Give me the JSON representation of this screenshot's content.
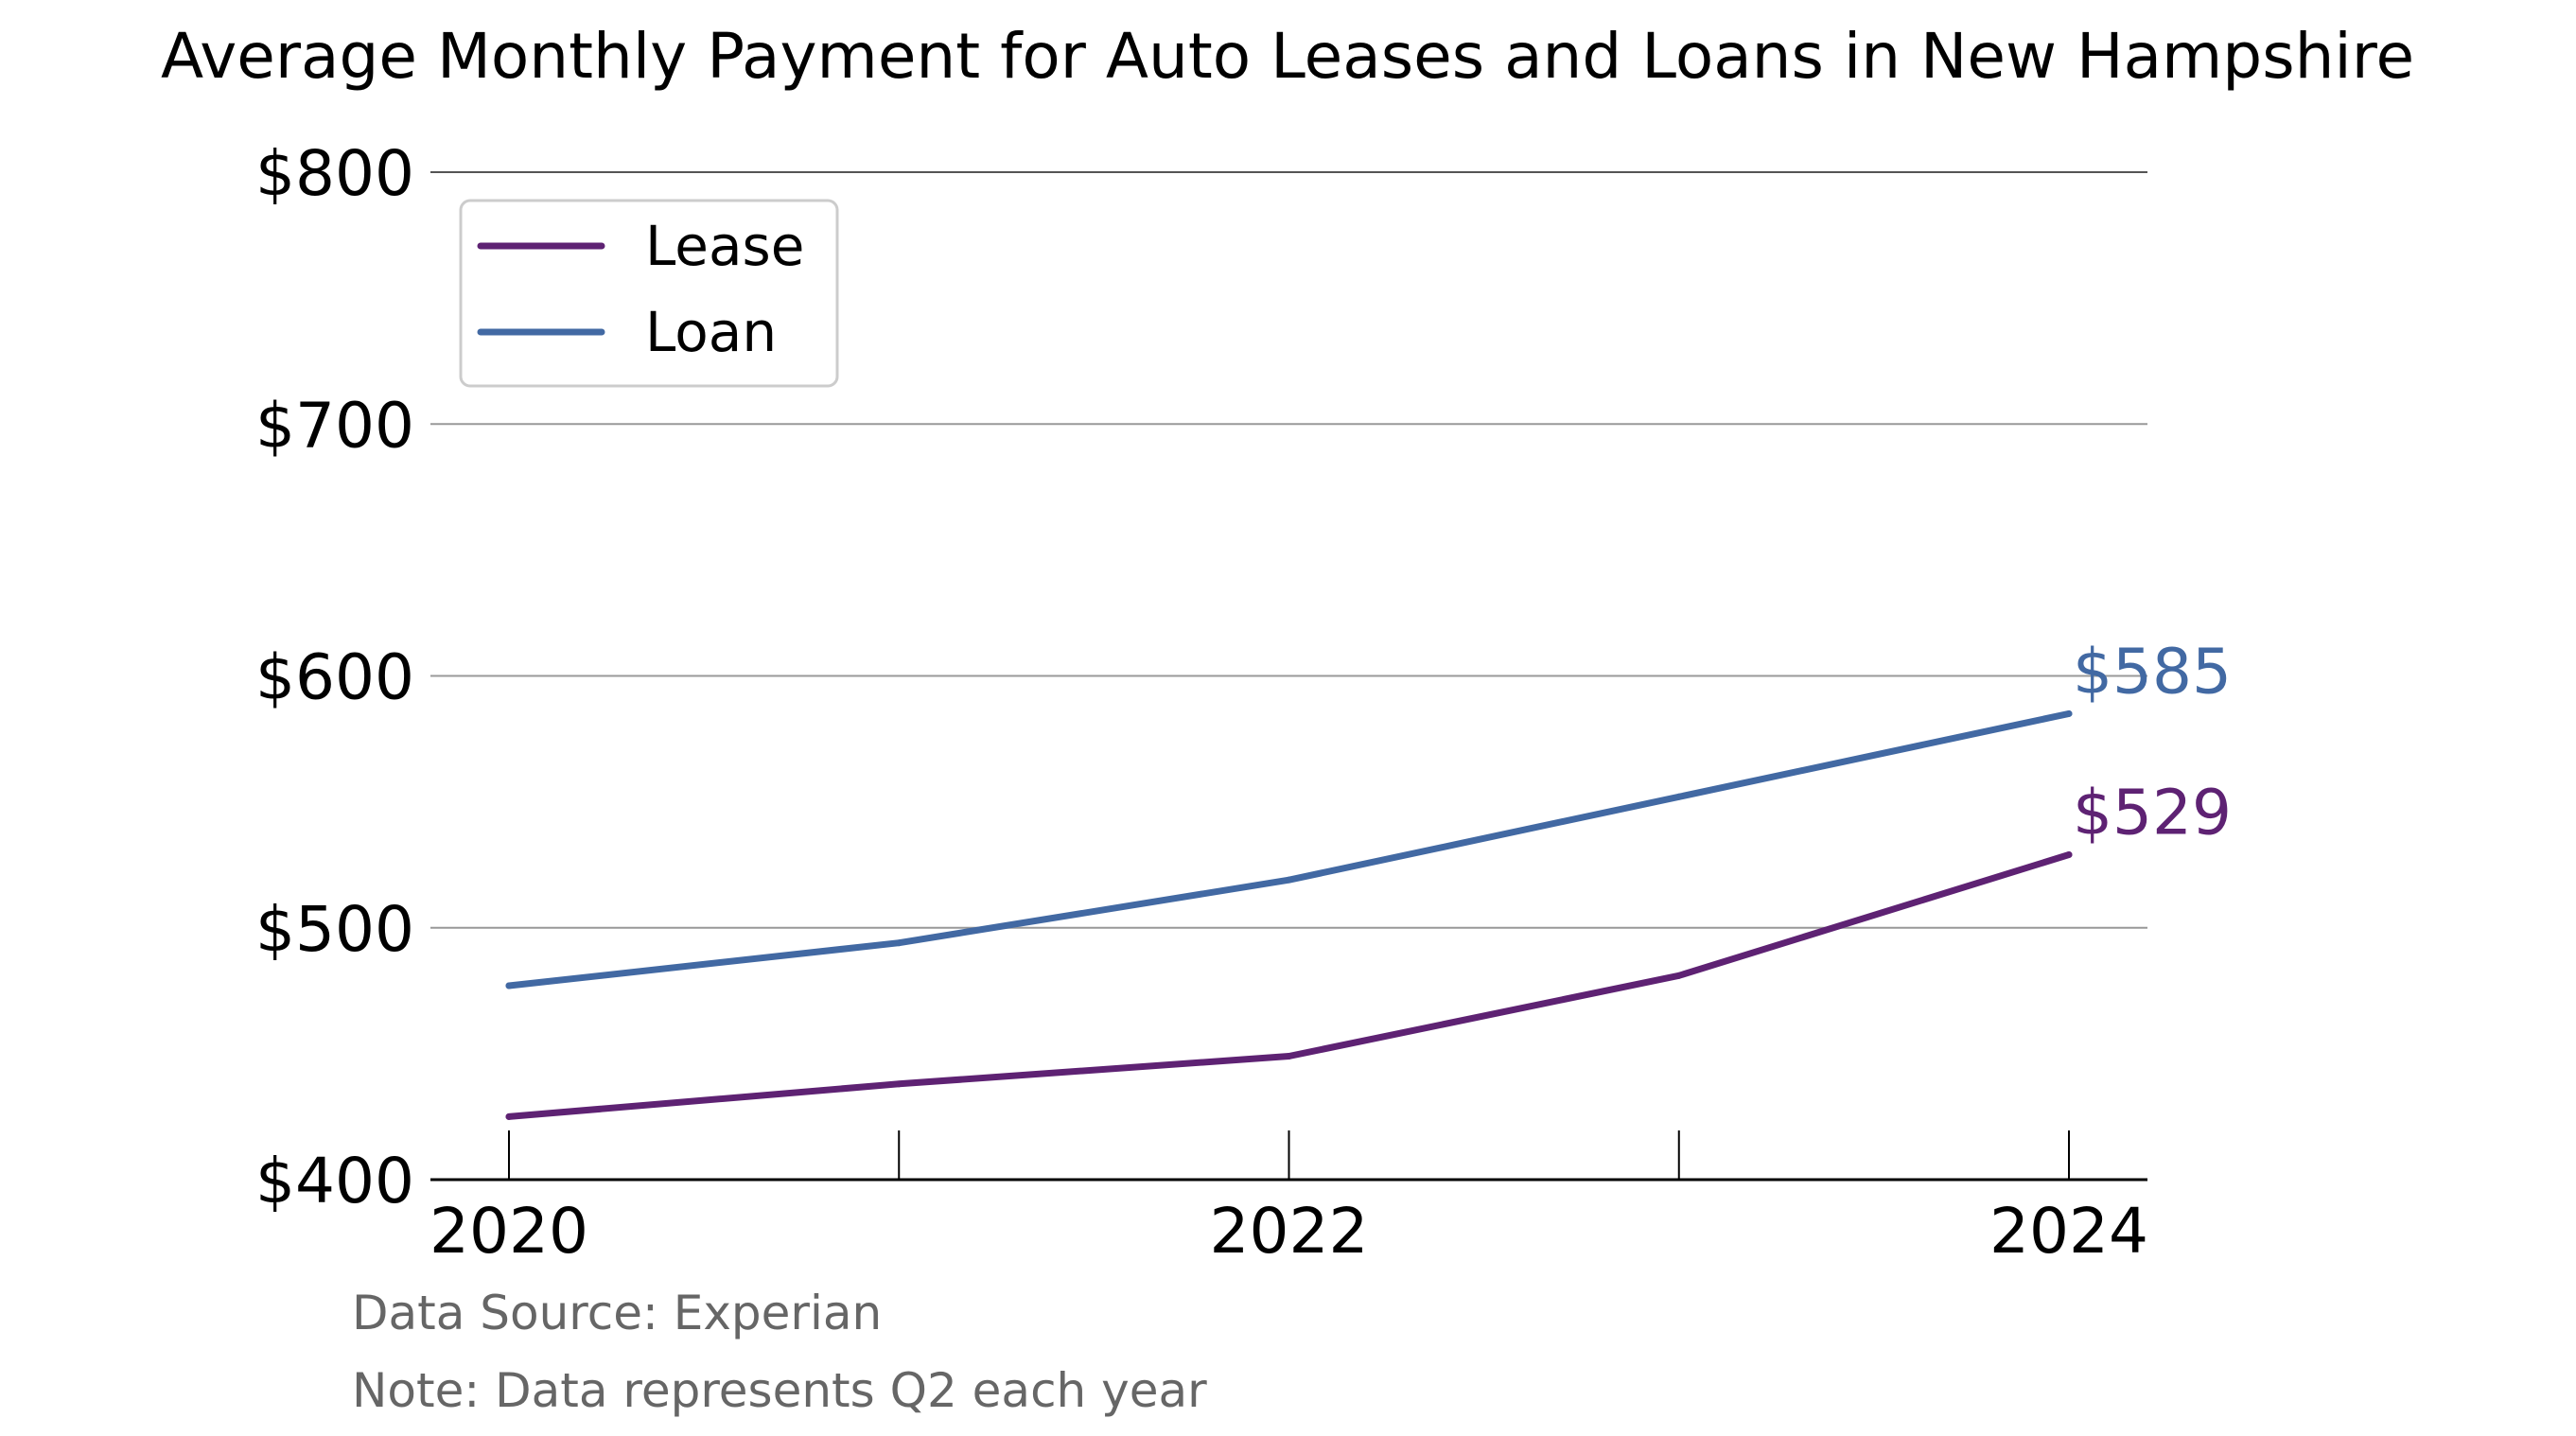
{
  "chart_data": {
    "type": "line",
    "title": "Average Monthly Payment for Auto Leases and Loans in New Hampshire",
    "x": [
      2020,
      2021,
      2022,
      2023,
      2024
    ],
    "x_tick_labels": [
      "2020",
      "2022",
      "2024"
    ],
    "x_tick_values": [
      2020,
      2022,
      2024
    ],
    "y_tick_labels": [
      "$400",
      "$500",
      "$600",
      "$700",
      "$800"
    ],
    "y_tick_values": [
      400,
      500,
      600,
      700,
      800
    ],
    "ylim": [
      400,
      800
    ],
    "xlim": [
      2020,
      2024
    ],
    "grid": "horizontal",
    "legend": {
      "placement": "top-left",
      "entries": [
        "Lease",
        "Loan"
      ]
    },
    "series": [
      {
        "name": "Lease",
        "color": "#5e2273",
        "values": [
          425,
          438,
          449,
          481,
          529
        ],
        "end_label": "$529"
      },
      {
        "name": "Loan",
        "color": "#4269a3",
        "values": [
          477,
          494,
          519,
          552,
          585
        ],
        "end_label": "$585"
      }
    ],
    "annotations": [
      "Data Source: Experian",
      "Note: Data represents Q2 each year"
    ]
  }
}
